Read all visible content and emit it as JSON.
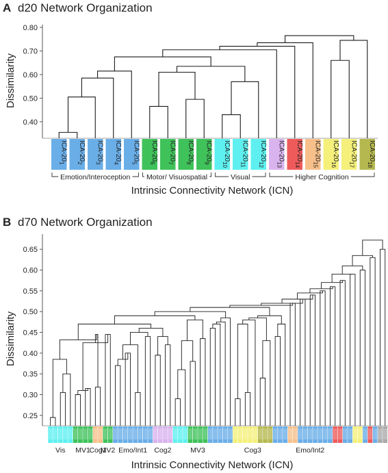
{
  "chart_data": [
    {
      "panel_letter": "A",
      "title": "d20 Network Organization",
      "type": "dendrogram",
      "ylabel": "Dissimilarity",
      "xlabel": "Intrinsic Connectivity Network (ICN)",
      "ylim": [
        0.33,
        0.8
      ],
      "yticks": [
        "0.40",
        "0.50",
        "0.60",
        "0.70",
        "0.80"
      ],
      "leaves": [
        {
          "label": "ICA-20",
          "sub": "1",
          "color": "#6aaee8"
        },
        {
          "label": "ICA-20",
          "sub": "2",
          "color": "#6aaee8"
        },
        {
          "label": "ICA-20",
          "sub": "3",
          "color": "#6aaee8"
        },
        {
          "label": "ICA-20",
          "sub": "4",
          "color": "#6aaee8"
        },
        {
          "label": "ICA-20",
          "sub": "5",
          "color": "#6aaee8"
        },
        {
          "label": "ICA-20",
          "sub": "6",
          "color": "#3fc25a"
        },
        {
          "label": "ICA-20",
          "sub": "7",
          "color": "#3fc25a"
        },
        {
          "label": "ICA-20",
          "sub": "8",
          "color": "#3fc25a"
        },
        {
          "label": "ICA-20",
          "sub": "9",
          "color": "#3fc25a"
        },
        {
          "label": "ICA-20",
          "sub": "10",
          "color": "#5ef0f0"
        },
        {
          "label": "ICA-20",
          "sub": "11",
          "color": "#5ef0f0"
        },
        {
          "label": "ICA-20",
          "sub": "12",
          "color": "#5ef0f0"
        },
        {
          "label": "ICA-20",
          "sub": "13",
          "color": "#d9b3ee"
        },
        {
          "label": "ICA-20",
          "sub": "14",
          "color": "#ee5a5a"
        },
        {
          "label": "ICA-20",
          "sub": "15",
          "color": "#f7c08a"
        },
        {
          "label": "ICA-20",
          "sub": "16",
          "color": "#f4f07a"
        },
        {
          "label": "ICA-20",
          "sub": "17",
          "color": "#f4f07a"
        },
        {
          "label": "ICA-20",
          "sub": "18",
          "color": "#b5b84e"
        }
      ],
      "merges": [
        [
          0,
          1,
          0.355
        ],
        [
          -1,
          2,
          0.505
        ],
        [
          -2,
          3,
          0.585
        ],
        [
          -3,
          4,
          0.615
        ],
        [
          5,
          6,
          0.465
        ],
        [
          7,
          8,
          0.495
        ],
        [
          -5,
          -6,
          0.61
        ],
        [
          9,
          10,
          0.43
        ],
        [
          -8,
          11,
          0.57
        ],
        [
          -7,
          -9,
          0.635
        ],
        [
          -4,
          -10,
          0.675
        ],
        [
          -11,
          12,
          0.705
        ],
        [
          15,
          16,
          0.66
        ],
        [
          -13,
          17,
          0.745
        ],
        [
          -12,
          13,
          0.72
        ],
        [
          -15,
          14,
          0.735
        ],
        [
          -16,
          -14,
          0.765
        ]
      ],
      "groups": [
        {
          "label": "Emotion/Interoception",
          "from": 0,
          "to": 4
        },
        {
          "label": "Motor/ Visuospatial",
          "from": 5,
          "to": 8
        },
        {
          "label": "Visual",
          "from": 9,
          "to": 11
        },
        {
          "label": "Higher Cognition",
          "from": 12,
          "to": 17
        }
      ]
    },
    {
      "panel_letter": "B",
      "title": "d70 Network Organization",
      "type": "dendrogram",
      "ylabel": "Dissimilarity",
      "xlabel": "Intrinsic Connectivity Network (ICN)",
      "ylim": [
        0.225,
        0.68
      ],
      "yticks": [
        "0.25",
        "0.30",
        "0.35",
        "0.40",
        "0.45",
        "0.50",
        "0.55",
        "0.60",
        "0.65"
      ],
      "leaf_colors": [
        "#5ef0f0",
        "#5ef0f0",
        "#5ef0f0",
        "#5ef0f0",
        "#5ef0f0",
        "#3fc25a",
        "#3fc25a",
        "#3fc25a",
        "#3fc25a",
        "#f7c08a",
        "#f7c08a",
        "#3fc25a",
        "#3fc25a",
        "#6aaee8",
        "#6aaee8",
        "#6aaee8",
        "#6aaee8",
        "#6aaee8",
        "#6aaee8",
        "#6aaee8",
        "#6aaee8",
        "#d9b3ee",
        "#d9b3ee",
        "#d9b3ee",
        "#d9b3ee",
        "#5ef0f0",
        "#5ef0f0",
        "#5ef0f0",
        "#3fc25a",
        "#3fc25a",
        "#3fc25a",
        "#3fc25a",
        "#6aaee8",
        "#6aaee8",
        "#6aaee8",
        "#6aaee8",
        "#6aaee8",
        "#f4f07a",
        "#f4f07a",
        "#f4f07a",
        "#f4f07a",
        "#f4f07a",
        "#b5b84e",
        "#b5b84e",
        "#b5b84e",
        "#6aaee8",
        "#6aaee8",
        "#6aaee8",
        "#f7c08a",
        "#f7c08a",
        "#6aaee8",
        "#6aaee8",
        "#6aaee8",
        "#6aaee8",
        "#6aaee8",
        "#6aaee8",
        "#6aaee8",
        "#ee5a5a",
        "#ee5a5a",
        "#6aaee8",
        "#6aaee8",
        "#f4f07a",
        "#f4f07a",
        "#6aaee8",
        "#ee5a5a",
        "#6aaee8",
        "#aaaaaa",
        "#aaaaaa"
      ],
      "merges": [
        [
          0,
          1,
          0.245
        ],
        [
          2,
          3,
          0.305
        ],
        [
          -2,
          4,
          0.35
        ],
        [
          -1,
          -3,
          0.385
        ],
        [
          5,
          6,
          0.3
        ],
        [
          7,
          8,
          0.315
        ],
        [
          -5,
          -6,
          0.31
        ],
        [
          9,
          10,
          0.318
        ],
        [
          11,
          12,
          0.445
        ],
        [
          -7,
          -9,
          0.425
        ],
        [
          -10,
          -8,
          0.445
        ],
        [
          -4,
          -11,
          0.432
        ],
        [
          13,
          14,
          0.37
        ],
        [
          15,
          16,
          0.4
        ],
        [
          -13,
          -14,
          0.385
        ],
        [
          17,
          18,
          0.305
        ],
        [
          -15,
          -16,
          0.42
        ],
        [
          19,
          20,
          0.44
        ],
        [
          -17,
          -18,
          0.45
        ],
        [
          21,
          22,
          0.395
        ],
        [
          23,
          24,
          0.42
        ],
        [
          -20,
          -21,
          0.44
        ],
        [
          -19,
          -22,
          0.46
        ],
        [
          -12,
          -23,
          0.47
        ],
        [
          25,
          26,
          0.29
        ],
        [
          -25,
          27,
          0.36
        ],
        [
          28,
          29,
          0.38
        ],
        [
          -26,
          -27,
          0.43
        ],
        [
          30,
          31,
          0.435
        ],
        [
          -28,
          -29,
          0.48
        ],
        [
          -24,
          -30,
          0.49
        ],
        [
          32,
          33,
          0.46
        ],
        [
          -32,
          34,
          0.47
        ],
        [
          -33,
          35,
          0.475
        ],
        [
          -34,
          36,
          0.485
        ],
        [
          -31,
          -35,
          0.5
        ],
        [
          37,
          38,
          0.29
        ],
        [
          39,
          40,
          0.305
        ],
        [
          -37,
          -38,
          0.47
        ],
        [
          -39,
          41,
          0.48
        ],
        [
          42,
          43,
          0.34
        ],
        [
          -41,
          44,
          0.43
        ],
        [
          -40,
          -42,
          0.485
        ],
        [
          45,
          46,
          0.44
        ],
        [
          -44,
          47,
          0.47
        ],
        [
          -43,
          -45,
          0.49
        ],
        [
          -36,
          -46,
          0.51
        ],
        [
          48,
          49,
          0.52
        ],
        [
          -47,
          -48,
          0.515
        ],
        [
          50,
          51,
          0.53
        ],
        [
          -49,
          -50,
          0.52
        ],
        [
          52,
          53,
          0.54
        ],
        [
          -51,
          -52,
          0.53
        ],
        [
          54,
          55,
          0.55
        ],
        [
          -53,
          -54,
          0.545
        ],
        [
          56,
          57,
          0.56
        ],
        [
          -55,
          -56,
          0.555
        ],
        [
          58,
          59,
          0.575
        ],
        [
          -57,
          -58,
          0.57
        ],
        [
          60,
          61,
          0.59
        ],
        [
          -59,
          -60,
          0.59
        ],
        [
          62,
          63,
          0.6
        ],
        [
          -61,
          -62,
          0.61
        ],
        [
          64,
          65,
          0.63
        ],
        [
          -63,
          -64,
          0.635
        ],
        [
          66,
          67,
          0.65
        ],
        [
          -65,
          -66,
          0.672
        ]
      ],
      "groups": [
        {
          "label": "Vis",
          "from": 0,
          "to": 4
        },
        {
          "label": "MV1",
          "from": 5,
          "to": 8
        },
        {
          "label": "Cog1",
          "from": 9,
          "to": 10
        },
        {
          "label": "MV2",
          "from": 11,
          "to": 12
        },
        {
          "label": "Emo/Int1",
          "from": 13,
          "to": 20
        },
        {
          "label": "Cog2",
          "from": 21,
          "to": 24
        },
        {
          "label": "MV3",
          "from": 28,
          "to": 31
        },
        {
          "label": "Cog3",
          "from": 37,
          "to": 44
        },
        {
          "label": "Emo/Int2",
          "from": 45,
          "to": 59
        }
      ]
    }
  ]
}
